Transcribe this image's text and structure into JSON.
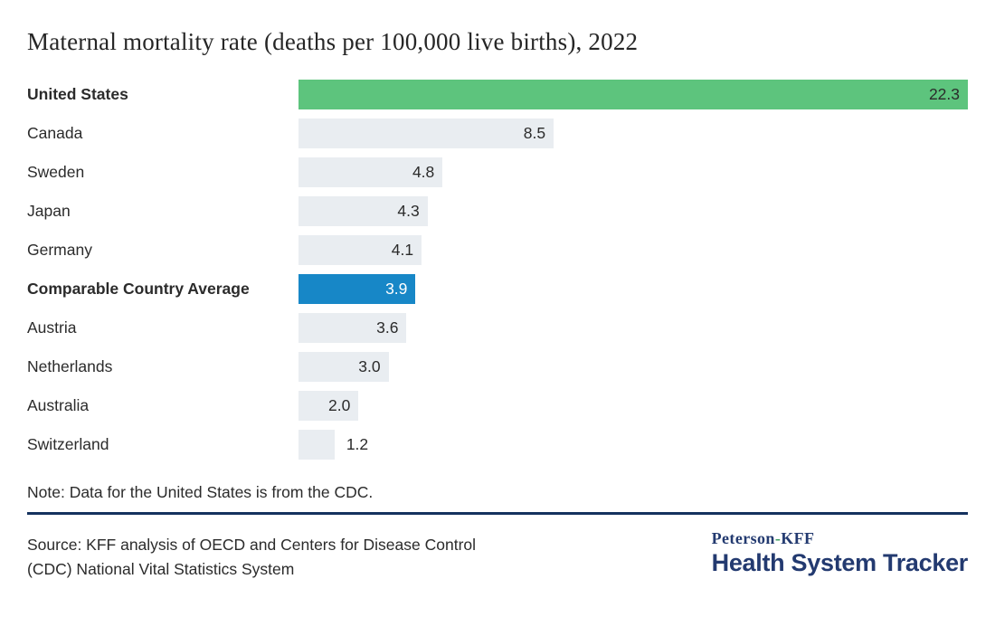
{
  "title": "Maternal mortality rate (deaths per 100,000 live births), 2022",
  "chart_data": {
    "type": "bar",
    "orientation": "horizontal",
    "title": "Maternal mortality rate (deaths per 100,000 live births), 2022",
    "xlabel": "",
    "ylabel": "",
    "xlim": [
      0,
      22.3
    ],
    "xmax": 22.3,
    "grid": false,
    "legend": false,
    "categories": [
      "United States",
      "Canada",
      "Sweden",
      "Japan",
      "Germany",
      "Comparable Country Average",
      "Austria",
      "Netherlands",
      "Australia",
      "Switzerland"
    ],
    "values": [
      22.3,
      8.5,
      4.8,
      4.3,
      4.1,
      3.9,
      3.6,
      3.0,
      2.0,
      1.2
    ],
    "rows": [
      {
        "label": "United States",
        "value": 22.3,
        "value_label": "22.3",
        "bold": true,
        "color": "bar_green",
        "value_text": "dark",
        "value_position": "inside"
      },
      {
        "label": "Canada",
        "value": 8.5,
        "value_label": "8.5",
        "bold": false,
        "color": "bar_gray",
        "value_text": "dark",
        "value_position": "inside"
      },
      {
        "label": "Sweden",
        "value": 4.8,
        "value_label": "4.8",
        "bold": false,
        "color": "bar_gray",
        "value_text": "dark",
        "value_position": "inside"
      },
      {
        "label": "Japan",
        "value": 4.3,
        "value_label": "4.3",
        "bold": false,
        "color": "bar_gray",
        "value_text": "dark",
        "value_position": "inside"
      },
      {
        "label": "Germany",
        "value": 4.1,
        "value_label": "4.1",
        "bold": false,
        "color": "bar_gray",
        "value_text": "dark",
        "value_position": "inside"
      },
      {
        "label": "Comparable Country Average",
        "value": 3.9,
        "value_label": "3.9",
        "bold": true,
        "color": "bar_blue",
        "value_text": "white",
        "value_position": "inside"
      },
      {
        "label": "Austria",
        "value": 3.6,
        "value_label": "3.6",
        "bold": false,
        "color": "bar_gray",
        "value_text": "dark",
        "value_position": "inside"
      },
      {
        "label": "Netherlands",
        "value": 3.0,
        "value_label": "3.0",
        "bold": false,
        "color": "bar_gray",
        "value_text": "dark",
        "value_position": "inside"
      },
      {
        "label": "Australia",
        "value": 2.0,
        "value_label": "2.0",
        "bold": false,
        "color": "bar_gray",
        "value_text": "dark",
        "value_position": "inside"
      },
      {
        "label": "Switzerland",
        "value": 1.2,
        "value_label": "1.2",
        "bold": false,
        "color": "bar_gray",
        "value_text": "dark",
        "value_position": "outside"
      }
    ]
  },
  "note": "Note: Data for the United States is from the CDC.",
  "source_lines": [
    "Source: KFF analysis of OECD and Centers for Disease Control",
    "(CDC) National Vital Statistics System"
  ],
  "logo": {
    "part1": "Peterson",
    "hyphen": "-",
    "part2": "KFF",
    "bottom": "Health System Tracker"
  },
  "colors": {
    "bar_green": "#5dc47d",
    "bar_blue": "#1787c7",
    "bar_gray": "#e9edf1",
    "value_dark": "#2b2b2b",
    "value_white": "#ffffff",
    "rule_navy": "#15325f",
    "logo_navy": "#233a70",
    "hyphen_green": "#3f9e62"
  }
}
